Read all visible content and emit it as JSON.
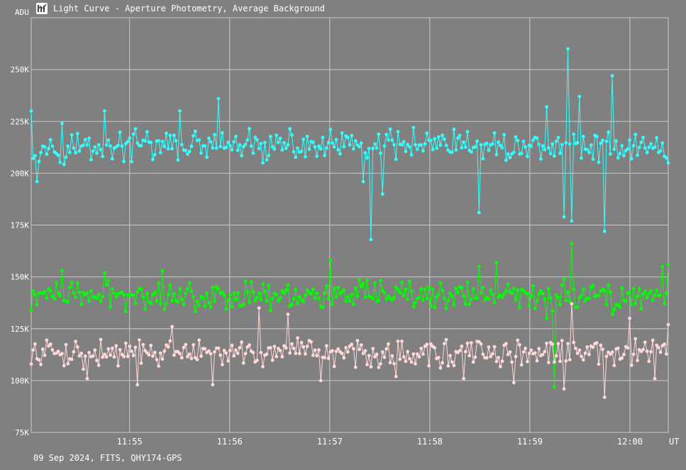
{
  "window": {
    "title": "Light Curve - Aperture Photometry, Average Background",
    "icon": "chart-icon"
  },
  "footer": {
    "info": "09 Sep 2024, FITS, QHY174-GPS"
  },
  "chart_data": {
    "type": "line",
    "title": "Light Curve - Aperture Photometry, Average Background",
    "ylabel": "ADU",
    "xunit": "UT",
    "ylim": [
      75000,
      275000
    ],
    "xlim": [
      "11:54:01",
      "11:60:23"
    ],
    "yticks": [
      {
        "value": 75000,
        "label": "75K"
      },
      {
        "value": 100000,
        "label": "100K"
      },
      {
        "value": 125000,
        "label": "125K"
      },
      {
        "value": 150000,
        "label": "150K"
      },
      {
        "value": 175000,
        "label": "175K"
      },
      {
        "value": 200000,
        "label": "200K"
      },
      {
        "value": 225000,
        "label": "225K"
      },
      {
        "value": 250000,
        "label": "250K"
      }
    ],
    "xticks": [
      {
        "value": "11:55",
        "label": "11:55"
      },
      {
        "value": "11:56",
        "label": "11:56"
      },
      {
        "value": "11:57",
        "label": "11:57"
      },
      {
        "value": "11:58",
        "label": "11:58"
      },
      {
        "value": "11:59",
        "label": "11:59"
      },
      {
        "value": "12:00",
        "label": "12:00"
      }
    ],
    "grid": true,
    "series": [
      {
        "color": "#33ffff",
        "baseline": 213000,
        "keypoints": [
          [
            "11:54:01",
            230000
          ],
          [
            "11:54:05",
            196000
          ],
          [
            "11:54:20",
            224000
          ],
          [
            "11:54:45",
            230000
          ],
          [
            "11:55:10",
            220000
          ],
          [
            "11:55:30",
            230000
          ],
          [
            "11:55:53",
            236000
          ],
          [
            "11:56:20",
            205000
          ],
          [
            "11:56:50",
            215000
          ],
          [
            "11:57:10",
            218000
          ],
          [
            "11:57:20",
            196000
          ],
          [
            "11:57:25",
            168000
          ],
          [
            "11:57:32",
            190000
          ],
          [
            "11:57:50",
            222000
          ],
          [
            "11:58:20",
            215000
          ],
          [
            "11:58:30",
            181000
          ],
          [
            "11:58:50",
            210000
          ],
          [
            "11:59:10",
            232000
          ],
          [
            "11:59:20",
            179000
          ],
          [
            "11:59:23",
            260000
          ],
          [
            "11:59:25",
            177000
          ],
          [
            "11:59:30",
            237000
          ],
          [
            "11:59:45",
            172000
          ],
          [
            "11:59:50",
            247000
          ],
          [
            "12:00:10",
            210000
          ],
          [
            "12:00:23",
            205000
          ]
        ]
      },
      {
        "color": "#00ff00",
        "baseline": 141000,
        "keypoints": [
          [
            "11:54:01",
            134000
          ],
          [
            "11:54:20",
            153000
          ],
          [
            "11:54:45",
            152000
          ],
          [
            "11:55:20",
            153000
          ],
          [
            "11:56:10",
            148000
          ],
          [
            "11:57:00",
            158000
          ],
          [
            "11:57:40",
            145000
          ],
          [
            "11:58:30",
            155000
          ],
          [
            "11:58:40",
            157000
          ],
          [
            "11:59:10",
            130000
          ],
          [
            "11:59:15",
            97000
          ],
          [
            "11:59:20",
            149000
          ],
          [
            "11:59:25",
            166000
          ],
          [
            "11:59:50",
            132000
          ],
          [
            "12:00:10",
            140000
          ],
          [
            "12:00:20",
            155000
          ],
          [
            "12:00:23",
            156000
          ]
        ]
      },
      {
        "color": "#ffd8d8",
        "baseline": 113000,
        "keypoints": [
          [
            "11:54:01",
            108000
          ],
          [
            "11:54:35",
            101000
          ],
          [
            "11:55:05",
            98000
          ],
          [
            "11:55:25",
            126000
          ],
          [
            "11:55:50",
            98000
          ],
          [
            "11:56:18",
            135000
          ],
          [
            "11:56:35",
            132000
          ],
          [
            "11:56:55",
            100000
          ],
          [
            "11:57:40",
            102000
          ],
          [
            "11:58:20",
            101000
          ],
          [
            "11:58:50",
            99000
          ],
          [
            "11:59:20",
            96000
          ],
          [
            "11:59:25",
            137000
          ],
          [
            "11:59:45",
            92000
          ],
          [
            "12:00:00",
            130000
          ],
          [
            "12:00:15",
            101000
          ],
          [
            "12:00:23",
            127000
          ]
        ]
      }
    ]
  }
}
